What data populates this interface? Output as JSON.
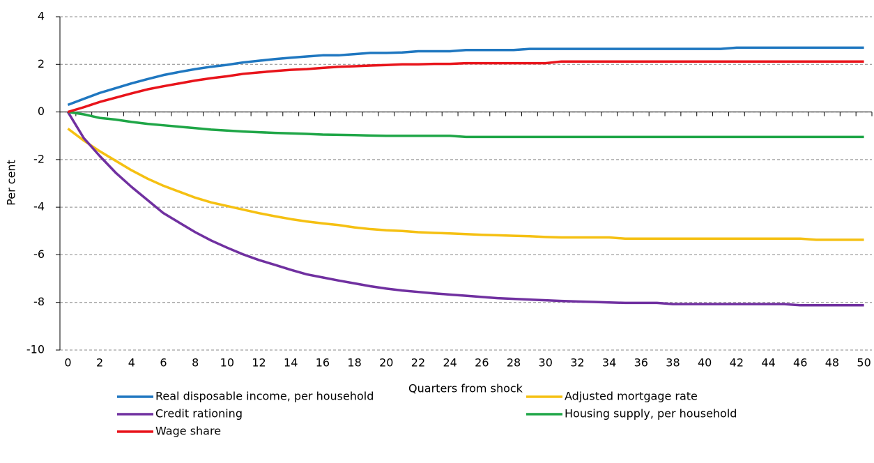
{
  "chart_data": {
    "type": "line",
    "x_label": "Quarters from shock",
    "y_label": "Per cent",
    "x": [
      0,
      1,
      2,
      3,
      4,
      5,
      6,
      7,
      8,
      9,
      10,
      11,
      12,
      13,
      14,
      15,
      16,
      17,
      18,
      19,
      20,
      21,
      22,
      23,
      24,
      25,
      26,
      27,
      28,
      29,
      30,
      31,
      32,
      33,
      34,
      35,
      36,
      37,
      38,
      39,
      40,
      41,
      42,
      43,
      44,
      45,
      46,
      47,
      48,
      49,
      50
    ],
    "xlim": [
      -0.5,
      50.5
    ],
    "xticks": [
      0,
      2,
      4,
      6,
      8,
      10,
      12,
      14,
      16,
      18,
      20,
      22,
      24,
      26,
      28,
      30,
      32,
      34,
      36,
      38,
      40,
      42,
      44,
      46,
      48,
      50
    ],
    "ylim": [
      -10,
      4
    ],
    "yticks": [
      -10,
      -8,
      -6,
      -4,
      -2,
      0,
      2,
      4
    ],
    "grid": true,
    "legend": "bottom",
    "series": [
      {
        "name": "Real disposable income, per household",
        "color": "#1f77c0",
        "values": [
          0.3,
          0.55,
          0.8,
          1.0,
          1.2,
          1.38,
          1.55,
          1.68,
          1.8,
          1.9,
          1.98,
          2.08,
          2.15,
          2.22,
          2.28,
          2.33,
          2.38,
          2.38,
          2.43,
          2.48,
          2.48,
          2.5,
          2.55,
          2.55,
          2.55,
          2.6,
          2.6,
          2.6,
          2.6,
          2.65,
          2.65,
          2.65,
          2.65,
          2.65,
          2.65,
          2.65,
          2.65,
          2.65,
          2.65,
          2.65,
          2.65,
          2.65,
          2.7,
          2.7,
          2.7,
          2.7,
          2.7,
          2.7,
          2.7,
          2.7,
          2.7
        ]
      },
      {
        "name": "Adjusted mortgage rate",
        "color": "#f5c012",
        "values": [
          -0.7,
          -1.2,
          -1.65,
          -2.05,
          -2.45,
          -2.8,
          -3.1,
          -3.35,
          -3.6,
          -3.8,
          -3.95,
          -4.1,
          -4.25,
          -4.38,
          -4.5,
          -4.6,
          -4.68,
          -4.75,
          -4.85,
          -4.92,
          -4.97,
          -5.0,
          -5.05,
          -5.08,
          -5.1,
          -5.13,
          -5.16,
          -5.18,
          -5.2,
          -5.22,
          -5.25,
          -5.27,
          -5.27,
          -5.27,
          -5.27,
          -5.32,
          -5.32,
          -5.32,
          -5.32,
          -5.32,
          -5.32,
          -5.32,
          -5.32,
          -5.32,
          -5.32,
          -5.32,
          -5.32,
          -5.37,
          -5.37,
          -5.37,
          -5.37
        ]
      },
      {
        "name": "Credit rationing",
        "color": "#7030a0",
        "values": [
          0,
          -1.1,
          -1.85,
          -2.55,
          -3.15,
          -3.7,
          -4.25,
          -4.65,
          -5.05,
          -5.4,
          -5.7,
          -5.98,
          -6.22,
          -6.42,
          -6.63,
          -6.82,
          -6.95,
          -7.08,
          -7.2,
          -7.32,
          -7.42,
          -7.5,
          -7.56,
          -7.62,
          -7.67,
          -7.72,
          -7.77,
          -7.82,
          -7.85,
          -7.88,
          -7.91,
          -7.94,
          -7.96,
          -7.98,
          -8.0,
          -8.02,
          -8.02,
          -8.02,
          -8.07,
          -8.07,
          -8.07,
          -8.07,
          -8.07,
          -8.07,
          -8.07,
          -8.07,
          -8.12,
          -8.12,
          -8.12,
          -8.12,
          -8.12
        ]
      },
      {
        "name": "Housing supply, per household",
        "color": "#1fa647",
        "values": [
          0,
          -0.1,
          -0.25,
          -0.32,
          -0.42,
          -0.5,
          -0.56,
          -0.62,
          -0.68,
          -0.74,
          -0.78,
          -0.82,
          -0.85,
          -0.88,
          -0.9,
          -0.92,
          -0.95,
          -0.96,
          -0.97,
          -0.99,
          -1.0,
          -1.0,
          -1.0,
          -1.0,
          -1.0,
          -1.05,
          -1.05,
          -1.05,
          -1.05,
          -1.05,
          -1.05,
          -1.05,
          -1.05,
          -1.05,
          -1.05,
          -1.05,
          -1.05,
          -1.05,
          -1.05,
          -1.05,
          -1.05,
          -1.05,
          -1.05,
          -1.05,
          -1.05,
          -1.05,
          -1.05,
          -1.05,
          -1.05,
          -1.05,
          -1.05
        ]
      },
      {
        "name": "Wage share",
        "color": "#e8141b",
        "values": [
          0,
          0.2,
          0.42,
          0.6,
          0.78,
          0.95,
          1.08,
          1.2,
          1.32,
          1.42,
          1.5,
          1.6,
          1.66,
          1.72,
          1.77,
          1.8,
          1.85,
          1.9,
          1.92,
          1.95,
          1.97,
          2.0,
          2.0,
          2.02,
          2.02,
          2.05,
          2.05,
          2.05,
          2.05,
          2.05,
          2.05,
          2.12,
          2.12,
          2.12,
          2.12,
          2.12,
          2.12,
          2.12,
          2.12,
          2.12,
          2.12,
          2.12,
          2.12,
          2.12,
          2.12,
          2.12,
          2.12,
          2.12,
          2.12,
          2.12,
          2.12
        ]
      }
    ]
  }
}
